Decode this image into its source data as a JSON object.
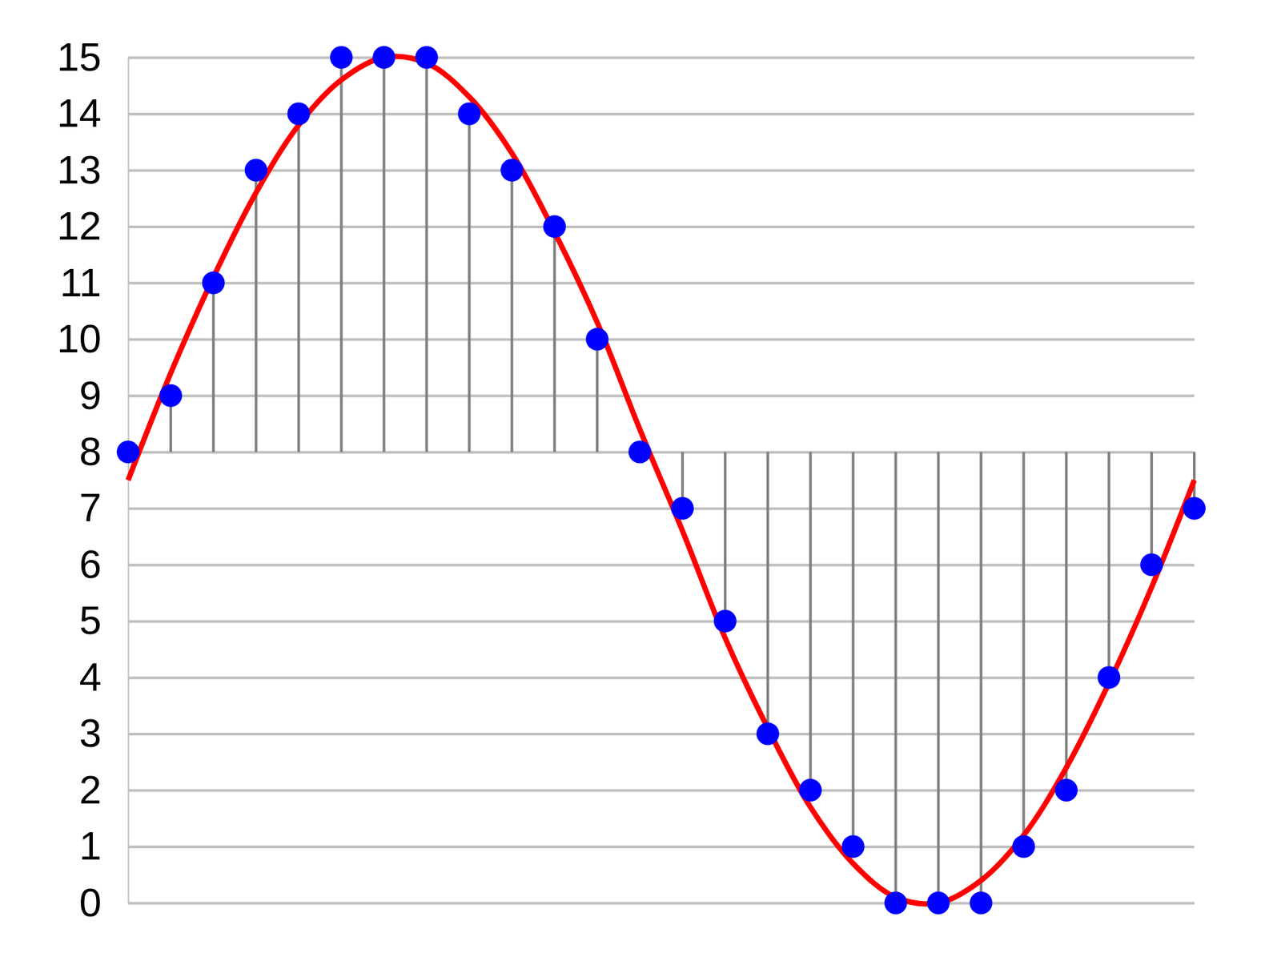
{
  "chart_data": {
    "type": "stem",
    "x": [
      0,
      1,
      2,
      3,
      4,
      5,
      6,
      7,
      8,
      9,
      10,
      11,
      12,
      13,
      14,
      15,
      16,
      17,
      18,
      19,
      20,
      21,
      22,
      23,
      24,
      25
    ],
    "xlim": [
      0,
      25
    ],
    "ylim": [
      0,
      15
    ],
    "yticks": [
      0,
      1,
      2,
      3,
      4,
      5,
      6,
      7,
      8,
      9,
      10,
      11,
      12,
      13,
      14,
      15
    ],
    "grid": true,
    "tick_labels": "y",
    "series": [
      {
        "type": "line",
        "color": "#ff0000",
        "line_style": "solid",
        "values": [
          7.5,
          9.4,
          11.1,
          12.6,
          13.8,
          14.6,
          15.0,
          14.9,
          14.3,
          13.3,
          11.9,
          10.3,
          8.4,
          6.6,
          4.7,
          3.1,
          1.7,
          0.7,
          0.1,
          0.0,
          0.4,
          1.2,
          2.4,
          3.9,
          5.6,
          7.5
        ]
      },
      {
        "type": "stem",
        "color": "#0000ff",
        "marker": "circle",
        "baseline": 8,
        "values": [
          8,
          9,
          11,
          13,
          14,
          15,
          15,
          15,
          14,
          13,
          12,
          10,
          8,
          7,
          5,
          3,
          2,
          1,
          0,
          0,
          0,
          1,
          2,
          4,
          6,
          7
        ]
      }
    ]
  }
}
